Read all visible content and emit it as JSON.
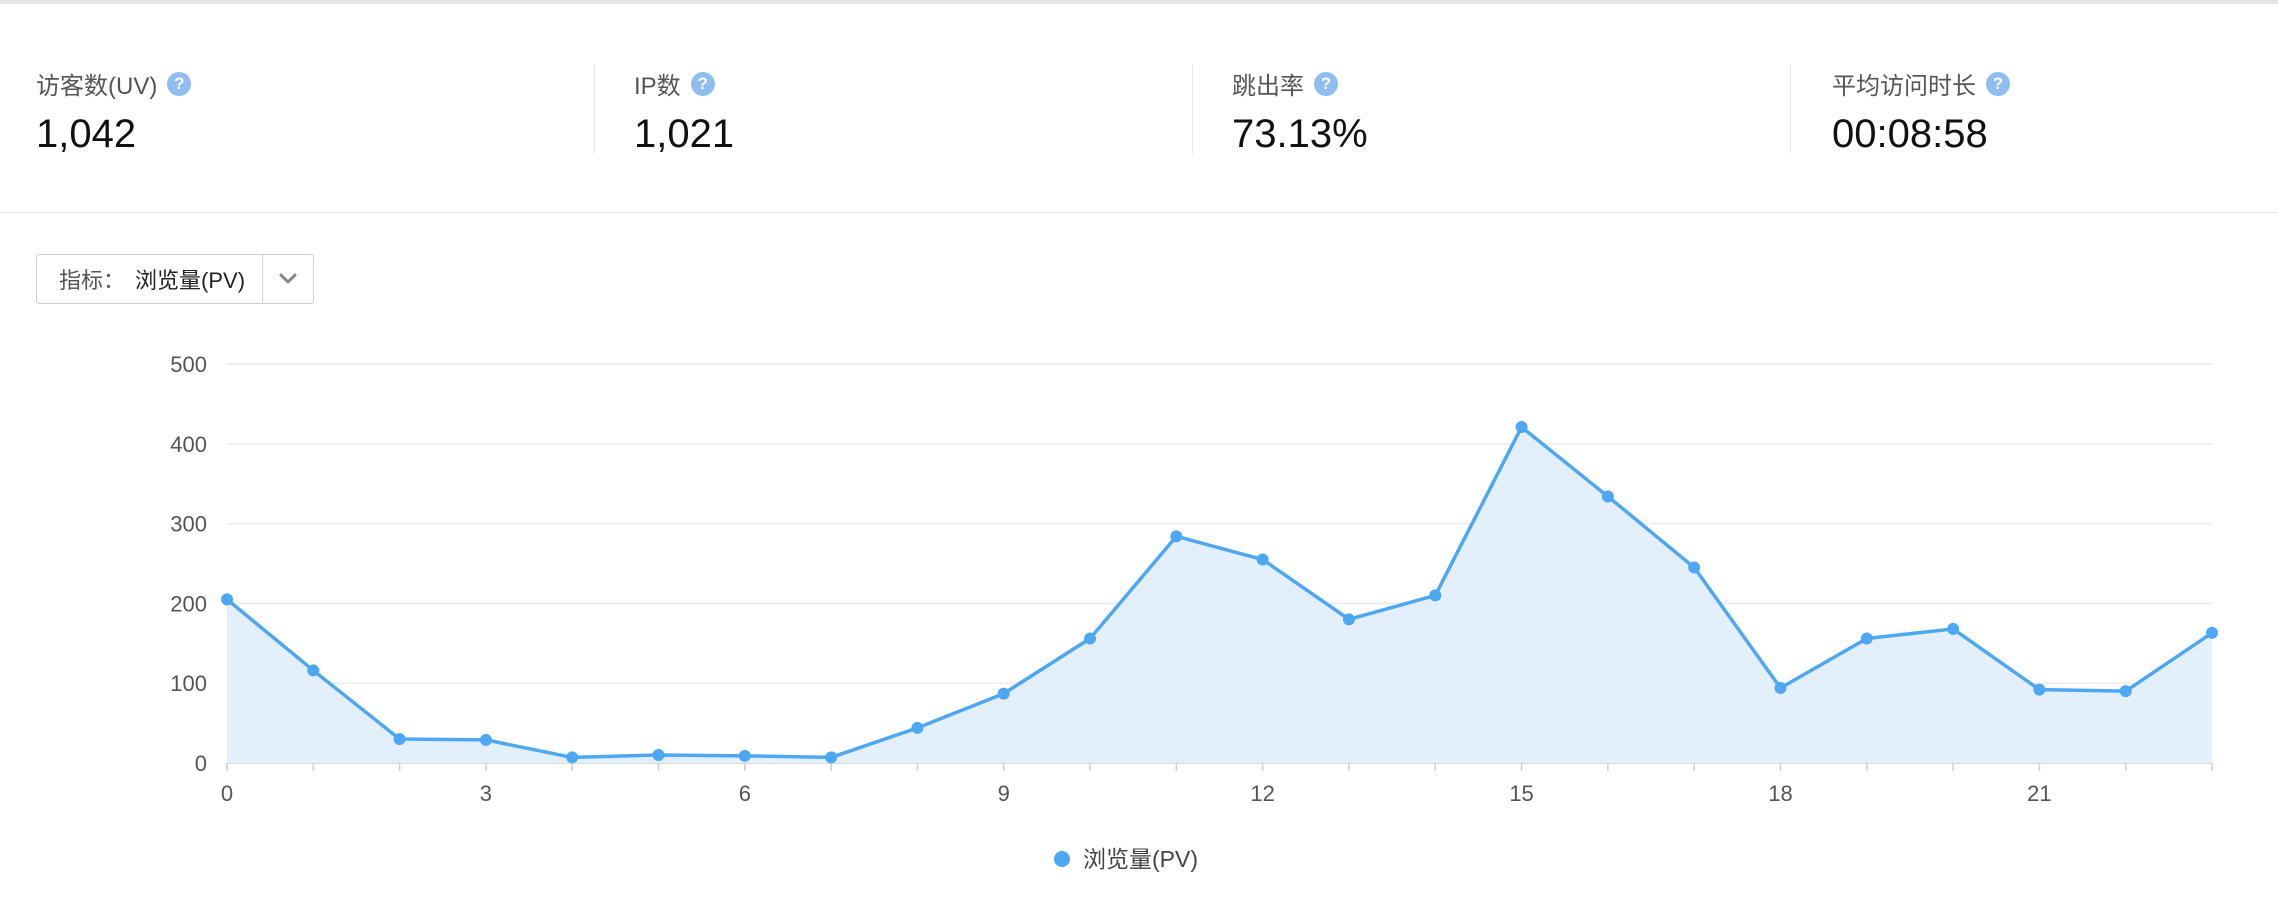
{
  "stats": [
    {
      "label": "访客数(UV)",
      "value": "1,042"
    },
    {
      "label": "IP数",
      "value": "1,021"
    },
    {
      "label": "跳出率",
      "value": "73.13%"
    },
    {
      "label": "平均访问时长",
      "value": "00:08:58"
    }
  ],
  "help_icon_glyph": "?",
  "metric_select": {
    "label": "指标：",
    "value": "浏览量(PV)",
    "arrow_icon": "chevron-down-icon"
  },
  "colors": {
    "series": "#4ea7f2",
    "area": "#e3effb",
    "help_icon": "#8fbdf0"
  },
  "chart_data": {
    "type": "area",
    "x": [
      0,
      1,
      2,
      3,
      4,
      5,
      6,
      7,
      8,
      9,
      10,
      11,
      12,
      13,
      14,
      15,
      16,
      17,
      18,
      19,
      20,
      21,
      22,
      23
    ],
    "x_ticks": [
      0,
      3,
      6,
      9,
      12,
      15,
      18,
      21
    ],
    "xlim": [
      0,
      23
    ],
    "ylim": [
      0,
      500
    ],
    "y_ticks": [
      0,
      100,
      200,
      300,
      400,
      500
    ],
    "grid": true,
    "legend_position": "bottom-center",
    "series": [
      {
        "name": "浏览量(PV)",
        "values": [
          205,
          116,
          30,
          29,
          7,
          10,
          9,
          7,
          44,
          87,
          156,
          284,
          255,
          180,
          210,
          421,
          334,
          245,
          94,
          156,
          168,
          92,
          90,
          163
        ]
      }
    ]
  }
}
